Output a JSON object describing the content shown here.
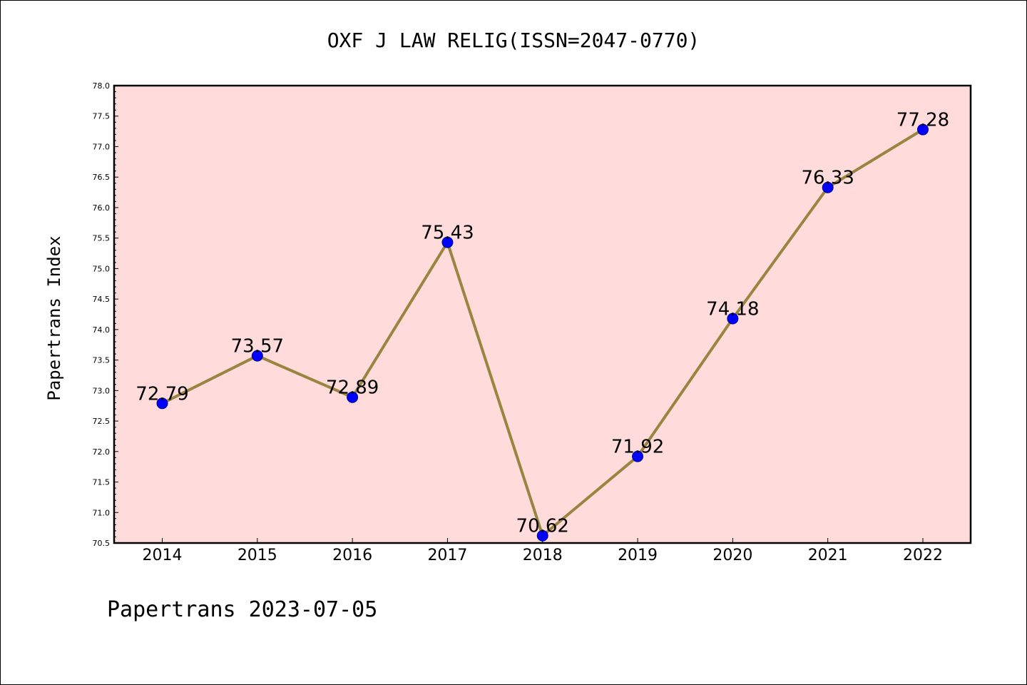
{
  "chart_data": {
    "type": "line",
    "title": "OXF J LAW RELIG(ISSN=2047-0770)",
    "ylabel": "Papertrans Index",
    "xlabel": "",
    "footer": "Papertrans 2023-07-05",
    "categories": [
      "2014",
      "2015",
      "2016",
      "2017",
      "2018",
      "2019",
      "2020",
      "2021",
      "2022"
    ],
    "values": [
      72.79,
      73.57,
      72.89,
      75.43,
      70.62,
      71.92,
      74.18,
      76.33,
      77.28
    ],
    "data_labels": [
      "72.79",
      "73.57",
      "72.89",
      "75.43",
      "70.62",
      "71.92",
      "74.18",
      "76.33",
      "77.28"
    ],
    "ylim": [
      70.5,
      78.0
    ],
    "yticks": [
      "70.5",
      "71.0",
      "71.5",
      "72.0",
      "72.5",
      "73.0",
      "73.5",
      "74.0",
      "74.5",
      "75.0",
      "75.5",
      "76.0",
      "76.5",
      "77.0",
      "77.5",
      "78.0"
    ],
    "grid": false,
    "colors": {
      "plot_background": "#ffdcdb",
      "line": "#9a8540",
      "marker": "#0000ff",
      "marker_edge": "#00008b",
      "axis": "#000000"
    }
  }
}
